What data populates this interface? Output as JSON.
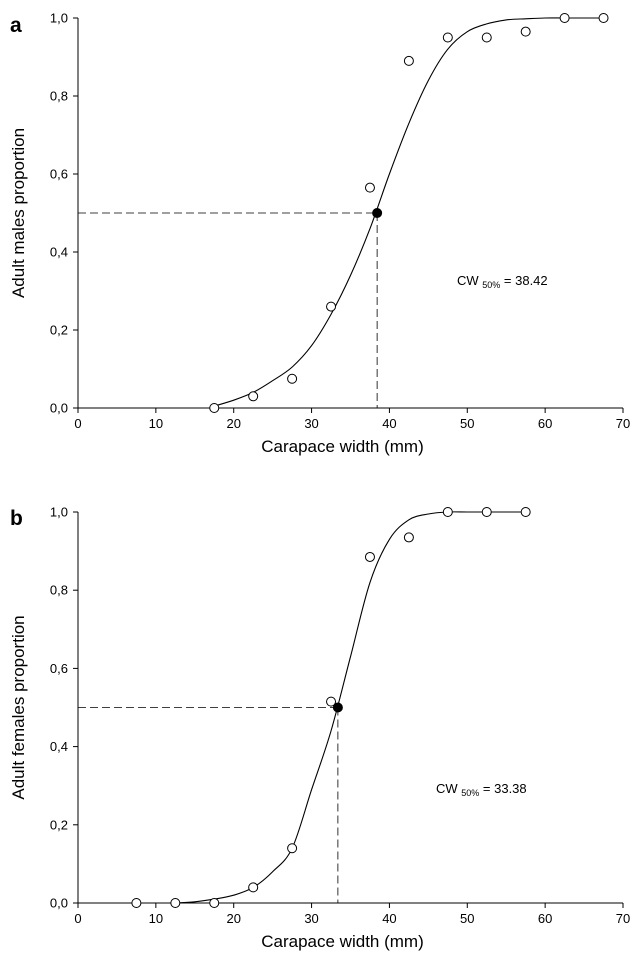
{
  "chart_data": [
    {
      "type": "scatter",
      "panel_label": "a",
      "xlabel": "Carapace width (mm)",
      "ylabel": "Adult males proportion",
      "xlim": [
        0,
        70
      ],
      "ylim": [
        0,
        1
      ],
      "x_ticks": [
        "0",
        "10",
        "20",
        "30",
        "40",
        "50",
        "60",
        "70"
      ],
      "y_ticks": [
        "0,0",
        "0,2",
        "0,4",
        "0,6",
        "0,8",
        "1,0"
      ],
      "points": {
        "x": [
          17.5,
          22.5,
          27.5,
          32.5,
          37.5,
          42.5,
          47.5,
          52.5,
          57.5,
          62.5,
          67.5
        ],
        "y": [
          0.0,
          0.03,
          0.075,
          0.26,
          0.565,
          0.89,
          0.95,
          0.95,
          0.965,
          1.0,
          1.0
        ]
      },
      "fit_curve": {
        "x": [
          17.5,
          20,
          22.5,
          25,
          27.5,
          30,
          32.5,
          35,
          37.5,
          40,
          42.5,
          45,
          47.5,
          50,
          52.5,
          55,
          57.5,
          60,
          62.5,
          65,
          67.5
        ],
        "y": [
          0.005,
          0.02,
          0.04,
          0.07,
          0.105,
          0.16,
          0.24,
          0.34,
          0.46,
          0.6,
          0.73,
          0.84,
          0.92,
          0.965,
          0.985,
          0.995,
          0.998,
          1.0,
          1.0,
          1.0,
          1.0
        ]
      },
      "midpoint": {
        "x": 38.42,
        "y": 0.5
      },
      "annotation": {
        "main": "CW",
        "sub": "50%",
        "value": "= 38.42"
      },
      "grid": false,
      "legend": "none"
    },
    {
      "type": "scatter",
      "panel_label": "b",
      "xlabel": "Carapace width (mm)",
      "ylabel": "Adult females proportion",
      "xlim": [
        0,
        70
      ],
      "ylim": [
        0,
        1
      ],
      "x_ticks": [
        "0",
        "10",
        "20",
        "30",
        "40",
        "50",
        "60",
        "70"
      ],
      "y_ticks": [
        "0,0",
        "0,2",
        "0,4",
        "0,6",
        "0,8",
        "1,0"
      ],
      "points": {
        "x": [
          7.5,
          12.5,
          17.5,
          22.5,
          27.5,
          32.5,
          37.5,
          42.5,
          47.5,
          52.5,
          57.5
        ],
        "y": [
          0.0,
          0.0,
          0.0,
          0.04,
          0.14,
          0.515,
          0.885,
          0.935,
          1.0,
          1.0,
          1.0
        ]
      },
      "fit_curve": {
        "x": [
          12.5,
          15,
          17.5,
          20,
          22.5,
          25,
          27.5,
          30,
          32.5,
          35,
          37.5,
          40,
          42.5,
          45,
          47.5,
          50,
          52.5,
          55,
          57.5
        ],
        "y": [
          0.0,
          0.003,
          0.01,
          0.02,
          0.04,
          0.08,
          0.14,
          0.29,
          0.44,
          0.63,
          0.82,
          0.93,
          0.98,
          0.995,
          1.0,
          1.0,
          1.0,
          1.0,
          1.0
        ]
      },
      "midpoint": {
        "x": 33.38,
        "y": 0.5
      },
      "annotation": {
        "main": "CW",
        "sub": "50%",
        "value": "= 33.38"
      },
      "grid": false,
      "legend": "none"
    }
  ]
}
